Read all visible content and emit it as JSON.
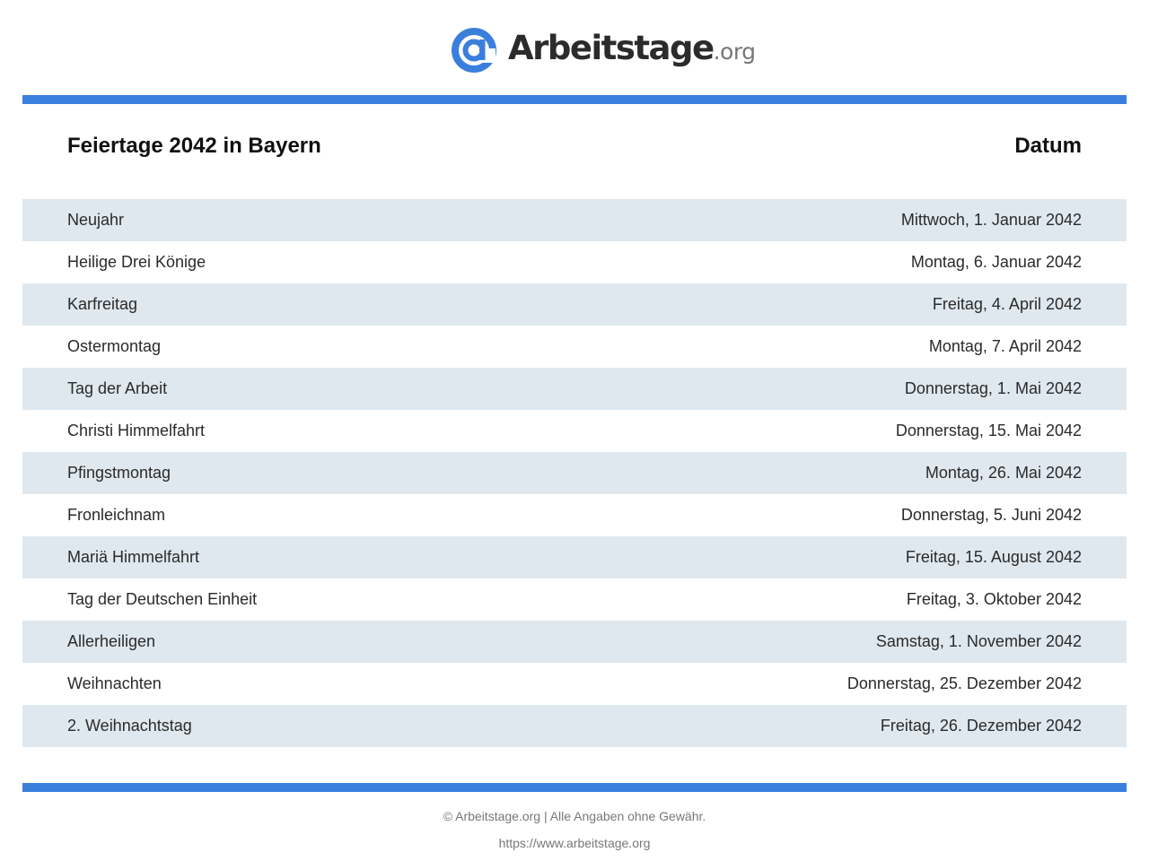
{
  "header": {
    "logo_name": "Arbeitstage",
    "logo_tld": ".org",
    "logo_icon": "at-sign-icon",
    "accent_color": "#3b7fdd",
    "row_stripe_color": "#dfe8ef"
  },
  "table": {
    "title": "Feiertage 2042 in Bayern",
    "date_header": "Datum",
    "rows": [
      {
        "name": "Neujahr",
        "date": "Mittwoch, 1. Januar 2042"
      },
      {
        "name": "Heilige Drei Könige",
        "date": "Montag, 6. Januar 2042"
      },
      {
        "name": "Karfreitag",
        "date": "Freitag, 4. April 2042"
      },
      {
        "name": "Ostermontag",
        "date": "Montag, 7. April 2042"
      },
      {
        "name": "Tag der Arbeit",
        "date": "Donnerstag, 1. Mai 2042"
      },
      {
        "name": "Christi Himmelfahrt",
        "date": "Donnerstag, 15. Mai 2042"
      },
      {
        "name": "Pfingstmontag",
        "date": "Montag, 26. Mai 2042"
      },
      {
        "name": "Fronleichnam",
        "date": "Donnerstag, 5. Juni 2042"
      },
      {
        "name": "Mariä Himmelfahrt",
        "date": "Freitag, 15. August 2042"
      },
      {
        "name": "Tag der Deutschen Einheit",
        "date": "Freitag, 3. Oktober 2042"
      },
      {
        "name": "Allerheiligen",
        "date": "Samstag, 1. November 2042"
      },
      {
        "name": "Weihnachten",
        "date": "Donnerstag, 25. Dezember 2042"
      },
      {
        "name": "2. Weihnachtstag",
        "date": "Freitag, 26. Dezember 2042"
      }
    ]
  },
  "footer": {
    "copyright": "© Arbeitstage.org | Alle Angaben ohne Gewähr.",
    "url": "https://www.arbeitstage.org"
  }
}
